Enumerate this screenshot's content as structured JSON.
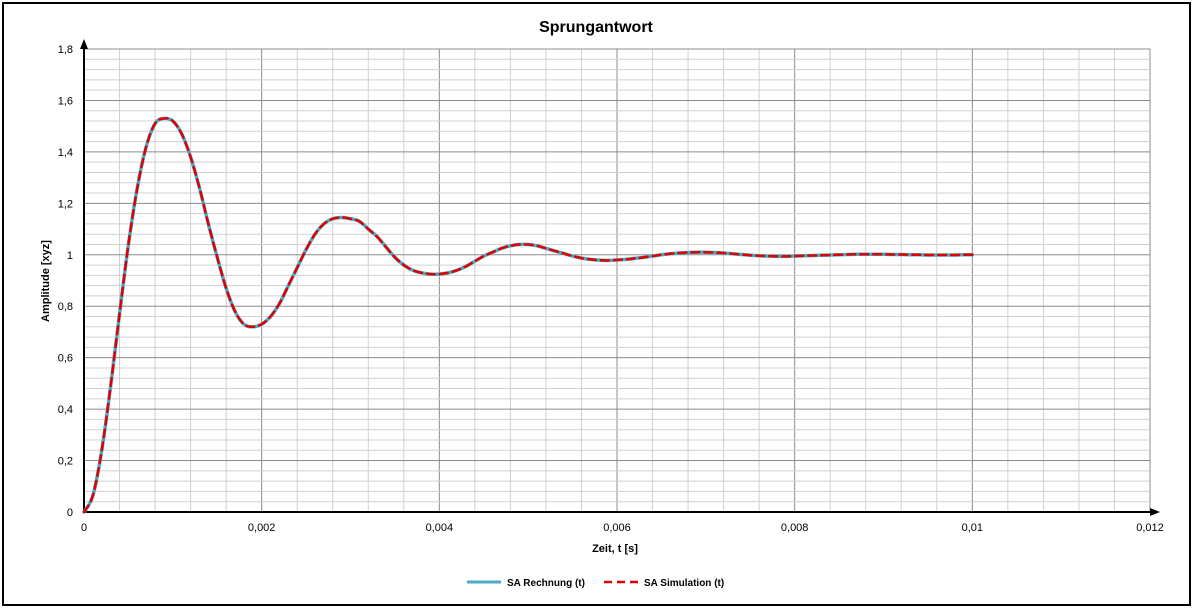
{
  "chart_data": {
    "type": "line",
    "title": "Sprungantwort",
    "xlabel": "Zeit,  t [s]",
    "ylabel": "Amplitude [xyz]",
    "xlim": [
      0,
      0.012
    ],
    "ylim": [
      0,
      1.8
    ],
    "x_tick_labels": [
      "0",
      "0,002",
      "0,004",
      "0,006",
      "0,008",
      "0,01",
      "0,012"
    ],
    "y_tick_labels": [
      "0",
      "0,2",
      "0,4",
      "0,6",
      "0,8",
      "1",
      "1,2",
      "1,4",
      "1,6",
      "1,8"
    ],
    "x_ticks": [
      0,
      0.002,
      0.004,
      0.006,
      0.008,
      0.01,
      0.012
    ],
    "y_ticks": [
      0,
      0.2,
      0.4,
      0.6,
      0.8,
      1.0,
      1.2,
      1.4,
      1.6,
      1.8
    ],
    "grid": true,
    "legend": "bottom",
    "series": [
      {
        "name": "SA Rechnung (t)",
        "color": "#4bacc6",
        "style": "solid",
        "x": [
          0,
          0.0001,
          0.0002,
          0.0003,
          0.0004,
          0.0005,
          0.0006,
          0.0007,
          0.0008,
          0.0009,
          0.001,
          0.0011,
          0.0012,
          0.0013,
          0.0014,
          0.0015,
          0.0016,
          0.0017,
          0.0018,
          0.0019,
          0.002,
          0.0021,
          0.0022,
          0.0023,
          0.0024,
          0.0025,
          0.0026,
          0.0027,
          0.0028,
          0.0029,
          0.003,
          0.0031,
          0.0032,
          0.0033,
          0.0034,
          0.0035,
          0.0036,
          0.0037,
          0.0038,
          0.0039,
          0.004,
          0.0041,
          0.0042,
          0.0043,
          0.0044,
          0.0045,
          0.0046,
          0.0047,
          0.0048,
          0.0049,
          0.005,
          0.0051,
          0.0052,
          0.0053,
          0.0054,
          0.0055,
          0.0056,
          0.0057,
          0.0058,
          0.0059,
          0.006,
          0.0061,
          0.0062,
          0.0063,
          0.0064,
          0.0065,
          0.0066,
          0.0067,
          0.0068,
          0.0069,
          0.007,
          0.0071,
          0.0072,
          0.0073,
          0.0074,
          0.0075,
          0.0076,
          0.0077,
          0.0078,
          0.0079,
          0.008,
          0.0081,
          0.0082,
          0.0083,
          0.0084,
          0.0085,
          0.0086,
          0.0087,
          0.0088,
          0.0089,
          0.009,
          0.0091,
          0.0092,
          0.0093,
          0.0094,
          0.0095,
          0.0096,
          0.0097,
          0.0098,
          0.0099,
          0.01
        ],
        "y": [
          0,
          0.064,
          0.24,
          0.49,
          0.77,
          1.04,
          1.26,
          1.42,
          1.51,
          1.53,
          1.52,
          1.47,
          1.38,
          1.26,
          1.12,
          0.99,
          0.87,
          0.78,
          0.73,
          0.72,
          0.73,
          0.76,
          0.81,
          0.88,
          0.95,
          1.02,
          1.08,
          1.12,
          1.14,
          1.145,
          1.14,
          1.13,
          1.1,
          1.07,
          1.03,
          0.99,
          0.96,
          0.94,
          0.93,
          0.925,
          0.925,
          0.93,
          0.94,
          0.955,
          0.975,
          0.995,
          1.01,
          1.025,
          1.035,
          1.04,
          1.04,
          1.035,
          1.025,
          1.015,
          1.005,
          0.995,
          0.987,
          0.982,
          0.979,
          0.978,
          0.98,
          0.982,
          0.986,
          0.99,
          0.995,
          1.0,
          1.004,
          1.007,
          1.009,
          1.01,
          1.01,
          1.009,
          1.007,
          1.004,
          1.001,
          0.998,
          0.996,
          0.995,
          0.994,
          0.994,
          0.995,
          0.996,
          0.997,
          0.998,
          0.999,
          1.0,
          1.001,
          1.002,
          1.002,
          1.002,
          1.002,
          1.001,
          1.001,
          1.0,
          1.0,
          0.999,
          0.999,
          0.999,
          0.999,
          1.0,
          1.0
        ]
      },
      {
        "name": "SA Simulation (t)",
        "color": "#e00000",
        "style": "dashed",
        "x": [
          0,
          0.0001,
          0.0002,
          0.0003,
          0.0004,
          0.0005,
          0.0006,
          0.0007,
          0.0008,
          0.0009,
          0.001,
          0.0011,
          0.0012,
          0.0013,
          0.0014,
          0.0015,
          0.0016,
          0.0017,
          0.0018,
          0.0019,
          0.002,
          0.0021,
          0.0022,
          0.0023,
          0.0024,
          0.0025,
          0.0026,
          0.0027,
          0.0028,
          0.0029,
          0.003,
          0.0031,
          0.0032,
          0.0033,
          0.0034,
          0.0035,
          0.0036,
          0.0037,
          0.0038,
          0.0039,
          0.004,
          0.0041,
          0.0042,
          0.0043,
          0.0044,
          0.0045,
          0.0046,
          0.0047,
          0.0048,
          0.0049,
          0.005,
          0.0051,
          0.0052,
          0.0053,
          0.0054,
          0.0055,
          0.0056,
          0.0057,
          0.0058,
          0.0059,
          0.006,
          0.0061,
          0.0062,
          0.0063,
          0.0064,
          0.0065,
          0.0066,
          0.0067,
          0.0068,
          0.0069,
          0.007,
          0.0071,
          0.0072,
          0.0073,
          0.0074,
          0.0075,
          0.0076,
          0.0077,
          0.0078,
          0.0079,
          0.008,
          0.0081,
          0.0082,
          0.0083,
          0.0084,
          0.0085,
          0.0086,
          0.0087,
          0.0088,
          0.0089,
          0.009,
          0.0091,
          0.0092,
          0.0093,
          0.0094,
          0.0095,
          0.0096,
          0.0097,
          0.0098,
          0.0099,
          0.01
        ],
        "y": [
          0,
          0.064,
          0.24,
          0.49,
          0.77,
          1.04,
          1.26,
          1.42,
          1.51,
          1.53,
          1.52,
          1.47,
          1.38,
          1.26,
          1.12,
          0.99,
          0.87,
          0.78,
          0.73,
          0.72,
          0.73,
          0.76,
          0.81,
          0.88,
          0.95,
          1.02,
          1.08,
          1.12,
          1.14,
          1.145,
          1.14,
          1.13,
          1.1,
          1.07,
          1.03,
          0.99,
          0.96,
          0.94,
          0.93,
          0.925,
          0.925,
          0.93,
          0.94,
          0.955,
          0.975,
          0.995,
          1.01,
          1.025,
          1.035,
          1.04,
          1.04,
          1.035,
          1.025,
          1.015,
          1.005,
          0.995,
          0.987,
          0.982,
          0.979,
          0.978,
          0.98,
          0.982,
          0.986,
          0.99,
          0.995,
          1.0,
          1.004,
          1.007,
          1.009,
          1.01,
          1.01,
          1.009,
          1.007,
          1.004,
          1.001,
          0.998,
          0.996,
          0.995,
          0.994,
          0.994,
          0.995,
          0.996,
          0.997,
          0.998,
          0.999,
          1.0,
          1.001,
          1.002,
          1.002,
          1.002,
          1.002,
          1.001,
          1.001,
          1.0,
          1.0,
          0.999,
          0.999,
          0.999,
          0.999,
          1.0,
          1.0
        ]
      }
    ]
  }
}
